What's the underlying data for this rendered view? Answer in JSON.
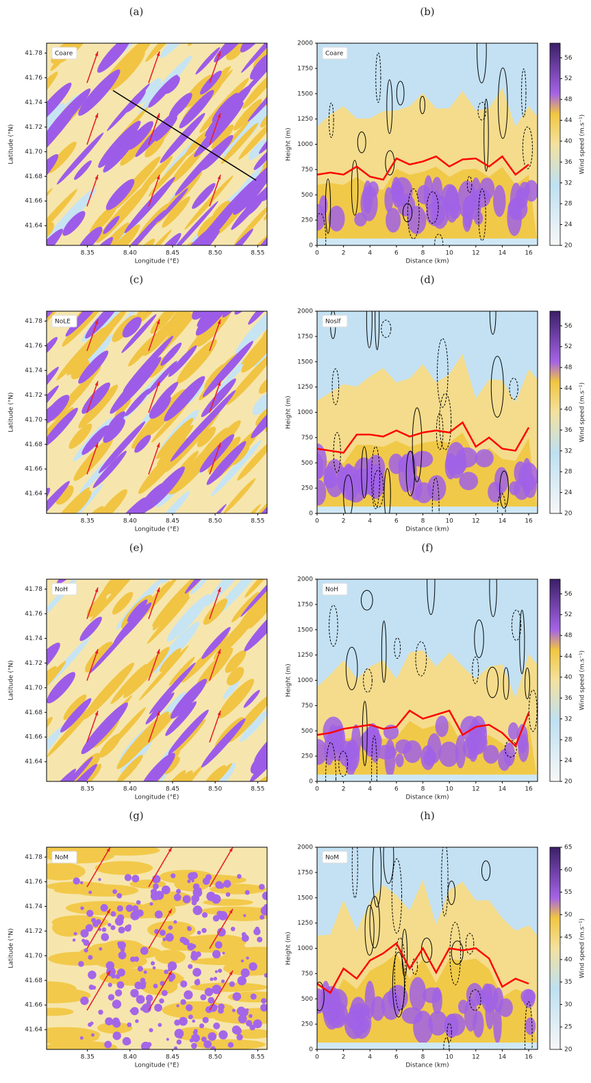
{
  "chart_data": [
    {
      "type": "map",
      "panel_label": "(a)",
      "annotation": "Coare",
      "xlabel": "Longitude (°E)",
      "ylabel": "Latitude (°N)",
      "xlim": [
        8.302,
        8.561
      ],
      "ylim": [
        41.624,
        41.788
      ],
      "xticks": [
        8.35,
        {
          "value": 8.4,
          "label": "8.40"
        },
        8.45,
        {
          "value": 8.5,
          "label": "8.50"
        },
        8.55
      ],
      "yticks": [
        41.64,
        41.66,
        41.68,
        {
          "value": 41.7,
          "label": "41.70"
        },
        41.72,
        41.74,
        41.76,
        41.78
      ]
    },
    {
      "type": "line",
      "panel_label": "(b)",
      "annotation": "Coare",
      "xlabel": "Distance (km)",
      "ylabel": "Height (m)",
      "xlim": [
        0,
        16.67
      ],
      "ylim": [
        0,
        2000
      ],
      "xticks": [
        0,
        2,
        4,
        6,
        8,
        10,
        12,
        14,
        16
      ],
      "yticks": [
        0,
        250,
        500,
        750,
        1000,
        1250,
        1500,
        1750,
        2000
      ],
      "color": "#ff0000",
      "x": [
        0,
        1,
        2,
        3,
        4,
        5,
        6,
        7,
        8,
        9,
        10,
        11,
        12,
        13,
        14,
        15,
        16
      ],
      "values": [
        700,
        720,
        700,
        780,
        680,
        650,
        860,
        800,
        830,
        880,
        780,
        850,
        860,
        780,
        880,
        700,
        800
      ],
      "colorbar": {
        "label": "Wind speed (m.s⁻¹)",
        "lim": [
          20,
          58.8
        ],
        "ticks": [
          20,
          24,
          28,
          32,
          36,
          40,
          44,
          48,
          52,
          56
        ]
      }
    },
    {
      "type": "map",
      "panel_label": "(c)",
      "annotation": "NoLE",
      "xlabel": "Longitude (°E)",
      "ylabel": "Latitude (°N)",
      "xlim": [
        8.302,
        8.561
      ],
      "ylim": [
        41.624,
        41.788
      ],
      "xticks": [
        8.35,
        {
          "value": 8.4,
          "label": "8.40"
        },
        8.45,
        {
          "value": 8.5,
          "label": "8.50"
        },
        8.55
      ],
      "yticks": [
        41.64,
        41.66,
        41.68,
        {
          "value": 41.7,
          "label": "41.70"
        },
        41.72,
        41.74,
        41.76,
        41.78
      ]
    },
    {
      "type": "line",
      "panel_label": "(d)",
      "annotation": "Noslf",
      "xlabel": "Distance (km)",
      "ylabel": "Height (m)",
      "xlim": [
        0,
        16.67
      ],
      "ylim": [
        0,
        2000
      ],
      "xticks": [
        0,
        2,
        4,
        6,
        8,
        10,
        12,
        14,
        16
      ],
      "yticks": [
        0,
        250,
        500,
        750,
        1000,
        1250,
        1500,
        1750,
        2000
      ],
      "color": "#ff0000",
      "x": [
        0,
        1,
        2,
        3,
        4,
        5,
        6,
        7,
        8,
        9,
        10,
        11,
        12,
        13,
        14,
        15,
        16
      ],
      "values": [
        640,
        620,
        600,
        780,
        780,
        760,
        820,
        760,
        800,
        820,
        800,
        900,
        660,
        750,
        640,
        620,
        850
      ],
      "colorbar": {
        "label": "Wind speed (m.s⁻¹)",
        "lim": [
          20,
          58.8
        ],
        "ticks": [
          20,
          24,
          28,
          32,
          36,
          40,
          44,
          48,
          52,
          56
        ]
      }
    },
    {
      "type": "map",
      "panel_label": "(e)",
      "annotation": "NoH",
      "xlabel": "Longitude (°E)",
      "ylabel": "Latitude (°N)",
      "xlim": [
        8.302,
        8.561
      ],
      "ylim": [
        41.624,
        41.788
      ],
      "xticks": [
        8.35,
        {
          "value": 8.4,
          "label": "8.40"
        },
        8.45,
        {
          "value": 8.5,
          "label": "8.50"
        },
        8.55
      ],
      "yticks": [
        41.64,
        41.66,
        41.68,
        {
          "value": 41.7,
          "label": "41.70"
        },
        41.72,
        41.74,
        41.76,
        41.78
      ]
    },
    {
      "type": "line",
      "panel_label": "(f)",
      "annotation": "NoH",
      "xlabel": "Distance (km)",
      "ylabel": "Height (m)",
      "xlim": [
        0,
        16.67
      ],
      "ylim": [
        0,
        2000
      ],
      "xticks": [
        0,
        2,
        4,
        6,
        8,
        10,
        12,
        14,
        16
      ],
      "yticks": [
        0,
        250,
        500,
        750,
        1000,
        1250,
        1500,
        1750,
        2000
      ],
      "color": "#ff0000",
      "x": [
        0,
        1,
        2,
        3,
        4,
        5,
        6,
        7,
        8,
        9,
        10,
        11,
        12,
        13,
        14,
        15,
        16
      ],
      "values": [
        460,
        480,
        520,
        540,
        560,
        520,
        540,
        700,
        620,
        660,
        700,
        460,
        540,
        560,
        480,
        350,
        680
      ],
      "colorbar": {
        "label": "Wind speed (m.s⁻¹)",
        "lim": [
          20,
          58.8
        ],
        "ticks": [
          20,
          24,
          28,
          32,
          36,
          40,
          44,
          48,
          52,
          56
        ]
      }
    },
    {
      "type": "map",
      "panel_label": "(g)",
      "annotation": "NoM",
      "xlabel": "Longitude (°E)",
      "ylabel": "Latitude (°N)",
      "xlim": [
        8.302,
        8.561
      ],
      "ylim": [
        41.624,
        41.788
      ],
      "xticks": [
        8.35,
        {
          "value": 8.4,
          "label": "8.40"
        },
        8.45,
        {
          "value": 8.5,
          "label": "8.50"
        },
        8.55
      ],
      "yticks": [
        41.64,
        41.66,
        41.68,
        {
          "value": 41.7,
          "label": "41.70"
        },
        41.72,
        41.74,
        41.76,
        41.78
      ]
    },
    {
      "type": "line",
      "panel_label": "(h)",
      "annotation": "NoM",
      "xlabel": "Distance (km)",
      "ylabel": "Height (m)",
      "xlim": [
        0,
        16.67
      ],
      "ylim": [
        0,
        2000
      ],
      "xticks": [
        0,
        2,
        4,
        6,
        8,
        10,
        12,
        14,
        16
      ],
      "yticks": [
        0,
        250,
        500,
        750,
        1000,
        1250,
        1500,
        1750,
        2000
      ],
      "color": "#ff0000",
      "x": [
        0,
        1,
        2,
        3,
        4,
        5,
        6,
        7,
        8,
        9,
        10,
        11,
        12,
        13,
        14,
        15,
        16
      ],
      "values": [
        650,
        560,
        800,
        700,
        880,
        950,
        1050,
        800,
        1000,
        760,
        1000,
        980,
        1000,
        900,
        620,
        700,
        650
      ],
      "colorbar": {
        "label": "Wind speed (m.s⁻¹)",
        "lim": [
          20,
          65
        ],
        "ticks": [
          20,
          25,
          30,
          35,
          40,
          45,
          50,
          55,
          60,
          65
        ]
      }
    }
  ]
}
